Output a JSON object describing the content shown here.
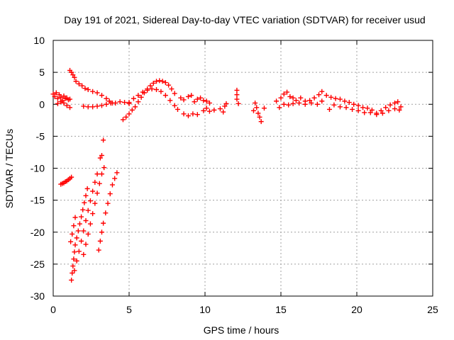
{
  "chart_data": {
    "type": "scatter",
    "title": "Day 191 of 2021, Sidereal Day-to-day VTEC variation (SDTVAR) for receiver usud",
    "xlabel": "GPS time / hours",
    "ylabel": "SDTVAR / TECUs",
    "xlim": [
      0,
      25
    ],
    "ylim": [
      -30,
      10
    ],
    "xticks": [
      0,
      5,
      10,
      15,
      20,
      25
    ],
    "yticks": [
      -30,
      -25,
      -20,
      -15,
      -10,
      -5,
      0,
      5,
      10
    ],
    "xtick_labels": [
      "0",
      "5",
      "10",
      "15",
      "20",
      "25"
    ],
    "ytick_labels": [
      "-30",
      "-25",
      "-20",
      "-15",
      "-10",
      "-5",
      "0",
      "5",
      "10"
    ],
    "grid": true,
    "marker": "plus",
    "color": "#ff0000",
    "series": [
      {
        "name": "SDTVAR",
        "points": [
          [
            0.0,
            1.6
          ],
          [
            0.1,
            1.2
          ],
          [
            0.2,
            1.8
          ],
          [
            0.3,
            0.9
          ],
          [
            0.4,
            1.5
          ],
          [
            0.5,
            1.1
          ],
          [
            0.6,
            0.6
          ],
          [
            0.7,
            1.3
          ],
          [
            0.8,
            0.9
          ],
          [
            0.9,
            1.0
          ],
          [
            1.0,
            0.7
          ],
          [
            1.1,
            0.8
          ],
          [
            0.3,
            0.1
          ],
          [
            0.5,
            0.4
          ],
          [
            0.7,
            0.2
          ],
          [
            0.9,
            -0.2
          ],
          [
            1.1,
            -0.5
          ],
          [
            0.5,
            -12.5
          ],
          [
            0.6,
            -12.4
          ],
          [
            0.7,
            -12.3
          ],
          [
            0.8,
            -12.1
          ],
          [
            0.9,
            -12.0
          ],
          [
            1.0,
            -11.8
          ],
          [
            1.1,
            -11.6
          ],
          [
            1.2,
            -11.4
          ],
          [
            1.1,
            5.3
          ],
          [
            1.2,
            5.0
          ],
          [
            1.3,
            4.6
          ],
          [
            1.4,
            4.2
          ],
          [
            1.5,
            3.6
          ],
          [
            1.7,
            3.2
          ],
          [
            1.9,
            2.9
          ],
          [
            2.1,
            2.5
          ],
          [
            2.3,
            2.3
          ],
          [
            2.6,
            2.0
          ],
          [
            2.9,
            1.8
          ],
          [
            3.2,
            1.4
          ],
          [
            3.5,
            0.9
          ],
          [
            3.7,
            0.5
          ],
          [
            3.9,
            0.2
          ],
          [
            1.2,
            -27.5
          ],
          [
            1.25,
            -26.4
          ],
          [
            1.3,
            -25.3
          ],
          [
            1.35,
            -24.2
          ],
          [
            1.4,
            -23.1
          ],
          [
            1.45,
            -22.0
          ],
          [
            1.55,
            -20.9
          ],
          [
            1.65,
            -19.8
          ],
          [
            1.75,
            -18.7
          ],
          [
            1.85,
            -17.6
          ],
          [
            1.95,
            -16.5
          ],
          [
            2.05,
            -15.4
          ],
          [
            2.15,
            -14.3
          ],
          [
            2.25,
            -13.2
          ],
          [
            1.15,
            -21.5
          ],
          [
            1.25,
            -20.3
          ],
          [
            1.35,
            -19.0
          ],
          [
            1.45,
            -17.7
          ],
          [
            1.4,
            -26.0
          ],
          [
            1.55,
            -24.5
          ],
          [
            1.7,
            -23.0
          ],
          [
            1.85,
            -21.4
          ],
          [
            2.0,
            -19.8
          ],
          [
            2.15,
            -18.2
          ],
          [
            2.3,
            -16.6
          ],
          [
            2.45,
            -15.1
          ],
          [
            2.6,
            -13.6
          ],
          [
            2.75,
            -12.2
          ],
          [
            2.9,
            -10.9
          ],
          [
            2.0,
            -23.5
          ],
          [
            2.15,
            -21.9
          ],
          [
            2.3,
            -20.3
          ],
          [
            2.45,
            -18.7
          ],
          [
            2.6,
            -17.1
          ],
          [
            2.75,
            -15.5
          ],
          [
            2.9,
            -13.9
          ],
          [
            3.05,
            -12.4
          ],
          [
            3.2,
            -10.9
          ],
          [
            3.35,
            -9.9
          ],
          [
            3.0,
            -22.8
          ],
          [
            3.1,
            -21.4
          ],
          [
            3.2,
            -20.0
          ],
          [
            3.3,
            -18.6
          ],
          [
            3.45,
            -17.0
          ],
          [
            3.6,
            -15.5
          ],
          [
            3.75,
            -14.0
          ],
          [
            3.9,
            -12.6
          ],
          [
            4.05,
            -11.6
          ],
          [
            4.2,
            -10.7
          ],
          [
            3.1,
            -8.4
          ],
          [
            3.2,
            -8.0
          ],
          [
            3.3,
            -5.6
          ],
          [
            2.0,
            -0.3
          ],
          [
            2.3,
            -0.4
          ],
          [
            2.6,
            -0.4
          ],
          [
            2.9,
            -0.3
          ],
          [
            3.2,
            -0.2
          ],
          [
            3.5,
            0.0
          ],
          [
            3.8,
            0.2
          ],
          [
            4.1,
            0.2
          ],
          [
            4.4,
            0.4
          ],
          [
            4.7,
            0.3
          ],
          [
            5.0,
            0.1
          ],
          [
            4.6,
            -2.4
          ],
          [
            4.8,
            -2.0
          ],
          [
            5.0,
            -1.5
          ],
          [
            5.2,
            -0.9
          ],
          [
            5.4,
            -0.4
          ],
          [
            5.6,
            0.4
          ],
          [
            5.8,
            1.1
          ],
          [
            6.0,
            1.8
          ],
          [
            6.2,
            2.4
          ],
          [
            6.4,
            2.9
          ],
          [
            6.6,
            3.3
          ],
          [
            6.8,
            3.6
          ],
          [
            7.0,
            3.7
          ],
          [
            7.2,
            3.6
          ],
          [
            7.4,
            3.4
          ],
          [
            7.6,
            3.0
          ],
          [
            7.8,
            2.4
          ],
          [
            8.0,
            1.7
          ],
          [
            5.0,
            0.3
          ],
          [
            5.3,
            0.9
          ],
          [
            5.6,
            1.4
          ],
          [
            5.9,
            1.9
          ],
          [
            6.2,
            2.2
          ],
          [
            6.5,
            2.4
          ],
          [
            6.8,
            2.3
          ],
          [
            7.1,
            2.0
          ],
          [
            7.4,
            1.4
          ],
          [
            7.7,
            0.6
          ],
          [
            8.0,
            -0.2
          ],
          [
            8.2,
            -0.8
          ],
          [
            8.4,
            1.0
          ],
          [
            8.6,
            0.7
          ],
          [
            8.9,
            1.2
          ],
          [
            9.1,
            1.4
          ],
          [
            9.3,
            0.4
          ],
          [
            9.5,
            0.8
          ],
          [
            9.7,
            1.0
          ],
          [
            9.9,
            0.6
          ],
          [
            10.1,
            0.5
          ],
          [
            10.3,
            0.2
          ],
          [
            8.6,
            -1.5
          ],
          [
            8.9,
            -1.8
          ],
          [
            9.2,
            -1.5
          ],
          [
            9.5,
            -1.6
          ],
          [
            9.9,
            -1.0
          ],
          [
            10.1,
            -0.6
          ],
          [
            10.3,
            -1.1
          ],
          [
            10.6,
            -0.9
          ],
          [
            11.0,
            -0.7
          ],
          [
            11.2,
            -1.2
          ],
          [
            11.3,
            -0.3
          ],
          [
            11.4,
            0.1
          ],
          [
            12.1,
            2.2
          ],
          [
            12.1,
            1.5
          ],
          [
            12.1,
            0.8
          ],
          [
            12.2,
            0.1
          ],
          [
            13.3,
            0.2
          ],
          [
            13.4,
            -0.5
          ],
          [
            13.5,
            -1.4
          ],
          [
            13.6,
            -2.0
          ],
          [
            13.7,
            -2.7
          ],
          [
            13.2,
            -1.0
          ],
          [
            13.9,
            -0.6
          ],
          [
            14.7,
            0.5
          ],
          [
            15.0,
            1.0
          ],
          [
            15.2,
            1.6
          ],
          [
            15.4,
            1.9
          ],
          [
            15.6,
            1.2
          ],
          [
            15.8,
            1.0
          ],
          [
            16.0,
            0.6
          ],
          [
            16.3,
            1.0
          ],
          [
            16.6,
            0.5
          ],
          [
            16.9,
            0.6
          ],
          [
            17.2,
            1.0
          ],
          [
            17.5,
            1.5
          ],
          [
            17.7,
            2.0
          ],
          [
            14.9,
            -0.5
          ],
          [
            15.2,
            0.0
          ],
          [
            15.5,
            -0.1
          ],
          [
            15.8,
            0.1
          ],
          [
            16.2,
            0.2
          ],
          [
            16.6,
            0.0
          ],
          [
            17.0,
            0.2
          ],
          [
            17.4,
            0.0
          ],
          [
            17.7,
            0.5
          ],
          [
            18.0,
            1.4
          ],
          [
            18.3,
            1.1
          ],
          [
            18.6,
            0.9
          ],
          [
            18.9,
            0.8
          ],
          [
            19.2,
            0.5
          ],
          [
            19.5,
            0.3
          ],
          [
            19.8,
            0.0
          ],
          [
            20.1,
            -0.2
          ],
          [
            20.4,
            -0.5
          ],
          [
            20.7,
            -0.6
          ],
          [
            21.0,
            -0.9
          ],
          [
            21.3,
            -1.4
          ],
          [
            21.6,
            -1.0
          ],
          [
            21.9,
            -0.5
          ],
          [
            22.2,
            -0.1
          ],
          [
            22.5,
            0.2
          ],
          [
            22.7,
            0.4
          ],
          [
            22.9,
            -0.4
          ],
          [
            18.2,
            -0.8
          ],
          [
            18.5,
            -0.1
          ],
          [
            18.9,
            -0.4
          ],
          [
            19.3,
            -0.5
          ],
          [
            19.7,
            -0.8
          ],
          [
            20.1,
            -1.0
          ],
          [
            20.5,
            -1.3
          ],
          [
            20.9,
            -1.3
          ],
          [
            21.3,
            -1.6
          ],
          [
            21.7,
            -1.4
          ],
          [
            22.1,
            -1.0
          ],
          [
            22.5,
            -0.7
          ],
          [
            22.8,
            -0.9
          ]
        ]
      }
    ]
  }
}
